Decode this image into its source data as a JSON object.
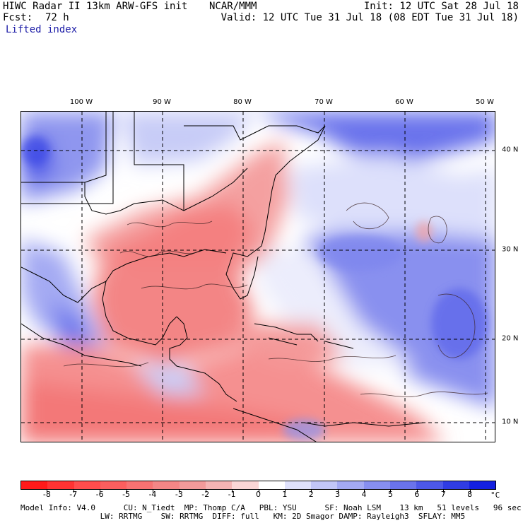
{
  "header": {
    "title_left": "HIWC Radar II 13km ARW-GFS init",
    "org": "NCAR/MMM",
    "init": "Init: 12 UTC Sat 28 Jul 18",
    "fcst_label": "Fcst:",
    "fcst_value": "72 h",
    "valid": "Valid: 12 UTC Tue 31 Jul 18 (08 EDT Tue 31 Jul 18)",
    "field": "Lifted index"
  },
  "map": {
    "lon_labels": [
      "100 W",
      "90 W",
      "80 W",
      "70 W",
      "60 W",
      "50 W"
    ],
    "lat_labels": [
      "40 N",
      "30 N",
      "20 N",
      "10 N"
    ]
  },
  "colorbar": {
    "tick_labels": [
      "-8",
      "-7",
      "-6",
      "-5",
      "-4",
      "-3",
      "-2",
      "-1",
      "0",
      "1",
      "2",
      "3",
      "4",
      "5",
      "6",
      "7",
      "8"
    ],
    "unit": "°C",
    "colors": [
      "#ff1a1a",
      "#ff3333",
      "#ff4d4d",
      "#fb5e5e",
      "#f77272",
      "#f48686",
      "#f29a9a",
      "#f5b4b4",
      "#fbd6d6",
      "#ffffff",
      "#dfe1fb",
      "#c2c6f7",
      "#a4aaf3",
      "#878ff0",
      "#6a73ec",
      "#4d58e8",
      "#303ce4",
      "#1420e0"
    ]
  },
  "footer": {
    "line1": "Model Info: V4.0      CU: N_Tiedt  MP: Thomp C/A   PBL: YSU      SF: Noah LSM    13 km   51 levels   96 sec",
    "line2": "                 LW: RRTMG    SW: RRTMG  DIFF: full   KM: 2D Smagor DAMP: Rayleigh3  SFLAY: MM5"
  }
}
